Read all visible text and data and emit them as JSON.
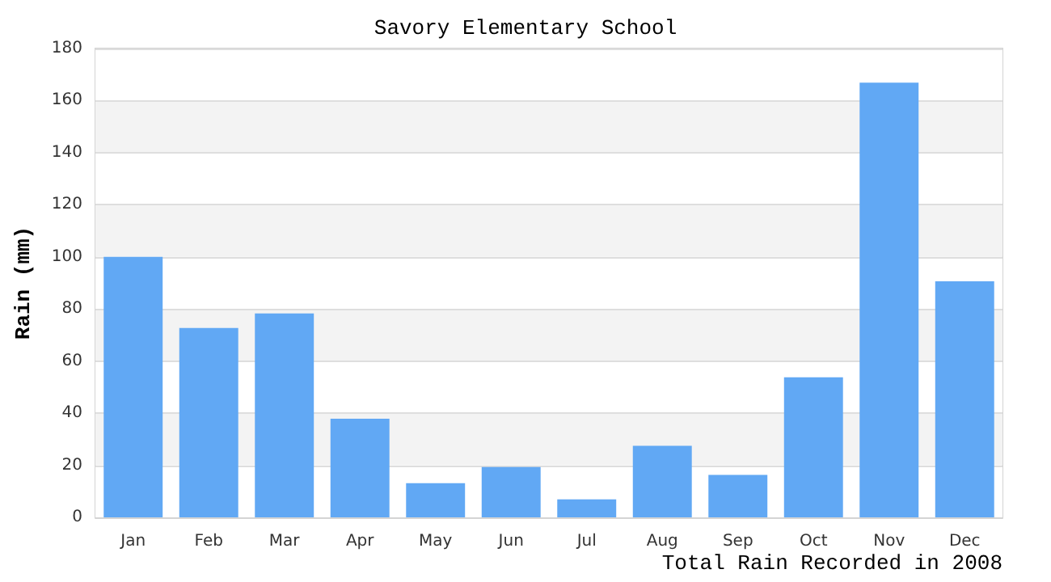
{
  "chart_data": {
    "type": "bar",
    "title": "Savory Elementary School",
    "xlabel": "Total Rain Recorded in 2008",
    "ylabel": "Rain (mm)",
    "categories": [
      "Jan",
      "Feb",
      "Mar",
      "Apr",
      "May",
      "Jun",
      "Jul",
      "Aug",
      "Sep",
      "Oct",
      "Nov",
      "Dec"
    ],
    "values": [
      100,
      72.7,
      78.3,
      37.9,
      13.1,
      19.3,
      6.9,
      27.5,
      16.3,
      53.8,
      166.9,
      90.6
    ],
    "color": "#61a8f4",
    "ylim": [
      0,
      180
    ],
    "yticks": [
      0,
      20,
      40,
      60,
      80,
      100,
      120,
      140,
      160,
      180
    ],
    "grid": "y"
  }
}
